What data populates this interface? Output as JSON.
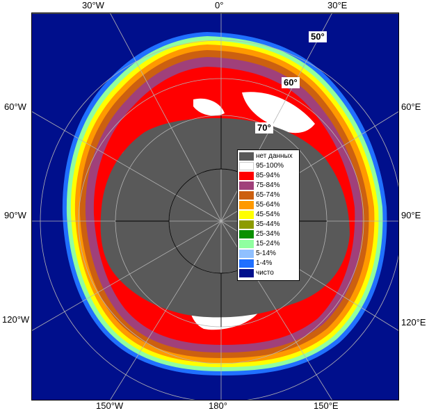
{
  "map": {
    "title": "",
    "top_labels": [
      "30°W",
      "0°",
      "30°E"
    ],
    "bottom_labels": [
      "150°W",
      "180°",
      "150°E"
    ],
    "left_labels": [
      "60°W",
      "90°W",
      "120°W"
    ],
    "right_labels": [
      "60°E",
      "90°E",
      "120°E"
    ],
    "lat_labels": [
      "50°",
      "60°",
      "70°"
    ],
    "colors": {
      "ocean": "#000f8c",
      "land_or_nodata": "#595959",
      "frame": "#000000",
      "grid": "#b4b4b4"
    }
  },
  "legend": {
    "items": [
      {
        "label": "нет данных",
        "color": "#595959"
      },
      {
        "label": "95-100%",
        "color": "#ffffff"
      },
      {
        "label": "85-94%",
        "color": "#ff0000"
      },
      {
        "label": "75-84%",
        "color": "#a0407a"
      },
      {
        "label": "65-74%",
        "color": "#cc6010"
      },
      {
        "label": "55-64%",
        "color": "#ff9900"
      },
      {
        "label": "45-54%",
        "color": "#ffff00"
      },
      {
        "label": "35-44%",
        "color": "#8c9b00"
      },
      {
        "label": "25-34%",
        "color": "#0a9000"
      },
      {
        "label": "15-24%",
        "color": "#90ffa0"
      },
      {
        "label": "5-14%",
        "color": "#90c0ff"
      },
      {
        "label": "1-4%",
        "color": "#2070ff"
      },
      {
        "label": "чисто",
        "color": "#000f8c"
      }
    ]
  }
}
